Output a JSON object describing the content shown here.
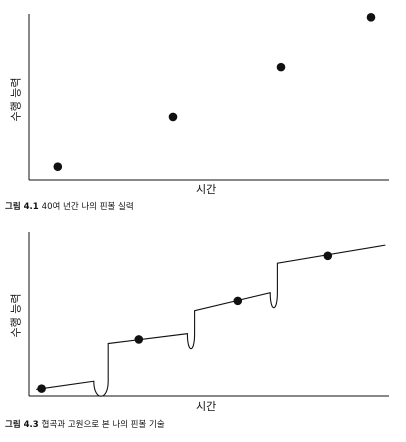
{
  "chart_data": [
    {
      "type": "scatter",
      "xlabel": "시간",
      "ylabel": "수행 능력",
      "caption_label": "그림 4.1",
      "caption_text": "40여 년간 나의 핀볼 실력",
      "xlim": [
        0,
        10
      ],
      "ylim": [
        0,
        10
      ],
      "x": [
        0.8,
        4.0,
        7.0,
        9.5
      ],
      "y": [
        0.8,
        3.8,
        6.8,
        9.8
      ]
    },
    {
      "type": "line",
      "xlabel": "시간",
      "ylabel": "수행 능력",
      "caption_label": "그림 4.3",
      "caption_text": "협곡과 고원으로 본 나의 핀볼 기술",
      "xlim": [
        0,
        10
      ],
      "ylim": [
        0,
        10
      ],
      "plateaus": [
        {
          "x": [
            0.2,
            1.8
          ],
          "y": [
            0.4,
            0.9
          ]
        },
        {
          "x": [
            2.2,
            4.4
          ],
          "y": [
            3.2,
            3.8
          ]
        },
        {
          "x": [
            4.6,
            6.7
          ],
          "y": [
            5.2,
            6.3
          ]
        },
        {
          "x": [
            6.9,
            9.9
          ],
          "y": [
            8.1,
            9.2
          ]
        }
      ],
      "points": [
        {
          "x": 0.35,
          "y": 0.45
        },
        {
          "x": 3.05,
          "y": 3.45
        },
        {
          "x": 5.8,
          "y": 5.8
        },
        {
          "x": 8.3,
          "y": 8.55
        }
      ]
    }
  ]
}
